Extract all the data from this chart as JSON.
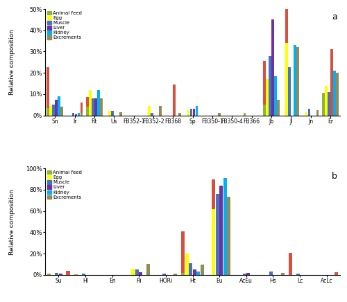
{
  "panel_a": {
    "title": "a",
    "ylim": [
      0,
      50
    ],
    "yticks": [
      0,
      10,
      20,
      30,
      40,
      50
    ],
    "ytick_labels": [
      "0%",
      "10%",
      "20%",
      "30%",
      "40%",
      "50%"
    ],
    "categories": [
      "Sn",
      "Ir",
      "Rt",
      "Us",
      "FB352-1",
      "FB352-2",
      "FB368",
      "Sp",
      "FB350-1",
      "FB350-4",
      "FB366",
      "Jb",
      "Jl",
      "Jn",
      "Er"
    ],
    "series_order": [
      "Animal feed",
      "Egg",
      "Muscle",
      "Liver",
      "Kidney",
      "Excrements"
    ],
    "series": {
      "Animal feed": {
        "base": [
          3.5,
          0,
          4.0,
          0,
          0,
          0,
          0,
          0,
          0,
          0,
          1.0,
          5.0,
          0,
          0,
          10.5
        ],
        "nox": [
          0,
          0,
          0,
          0,
          0,
          0,
          0,
          0,
          0,
          0,
          0,
          0,
          0,
          0,
          0
        ],
        "color": "#8db33a"
      },
      "Egg": {
        "base": [
          4.5,
          0,
          12.0,
          2.0,
          0,
          4.5,
          0,
          2.5,
          0,
          0,
          0,
          17.0,
          34.0,
          1.5,
          14.0
        ],
        "nox": [
          0,
          0,
          0,
          0,
          0,
          0,
          0,
          0,
          0,
          0,
          0,
          0,
          0,
          0,
          0
        ],
        "color": "#ffff00"
      },
      "Muscle": {
        "base": [
          5.0,
          1.0,
          8.0,
          2.0,
          0,
          1.0,
          0,
          3.0,
          0,
          0,
          0,
          28.0,
          22.5,
          3.0,
          11.0
        ],
        "nox": [
          0,
          0,
          0,
          0,
          0,
          0,
          0,
          0,
          0,
          0,
          0,
          0,
          0,
          0,
          0
        ],
        "color": "#4472c4"
      },
      "Liver": {
        "base": [
          7.5,
          0.5,
          8.0,
          0,
          0,
          0,
          0,
          3.0,
          0,
          0,
          0,
          45.0,
          0,
          0,
          0
        ],
        "nox": [
          0,
          0,
          0,
          0,
          0,
          0,
          0,
          0,
          0,
          0,
          0,
          0,
          0,
          0,
          0
        ],
        "color": "#7030a0"
      },
      "Kidney": {
        "base": [
          9.0,
          1.0,
          12.0,
          0,
          0,
          0,
          0,
          4.5,
          0,
          0,
          0,
          18.5,
          33.0,
          0,
          21.0
        ],
        "nox": [
          0,
          0,
          0,
          0,
          0,
          0,
          0,
          0,
          0,
          0,
          0,
          0,
          0,
          0,
          0
        ],
        "color": "#00b0f0"
      },
      "Excrements": {
        "base": [
          4.0,
          1.0,
          8.0,
          1.5,
          0,
          4.5,
          1.0,
          0,
          1.0,
          0,
          0,
          7.5,
          32.0,
          2.5,
          20.0
        ],
        "nox": [
          0,
          0,
          0,
          0,
          0,
          0,
          0,
          0,
          0,
          0,
          0,
          0,
          0,
          0,
          0
        ],
        "color": "#948a54"
      }
    },
    "red_nox": {
      "Sn": {
        "series": "Animal feed",
        "base": 0,
        "nox": 19.0
      },
      "Ir": {
        "series": "Excrements",
        "base": 0,
        "nox": 5.0
      },
      "Rt": {
        "series": "Animal feed",
        "base": 0,
        "nox": 4.5
      },
      "FB368": {
        "series": "Liver",
        "base": 0,
        "nox": 14.5
      },
      "Jb": {
        "series": "Animal feed",
        "base": 0,
        "nox": 20.5
      },
      "Jl": {
        "series": "Egg",
        "base": 0,
        "nox": 40.0
      },
      "Er": {
        "series": "Liver",
        "base": 0,
        "nox": 31.0
      }
    }
  },
  "panel_b": {
    "title": "b",
    "ylim": [
      0,
      100
    ],
    "yticks": [
      0,
      20,
      40,
      60,
      80,
      100
    ],
    "ytick_labels": [
      "0%",
      "20%",
      "40%",
      "60%",
      "80%",
      "100%"
    ],
    "categories": [
      "Su",
      "Hl",
      "En",
      "Ri",
      "HORi",
      "Ht",
      "Eu",
      "AcEu",
      "Hs",
      "Lc",
      "AcLc"
    ],
    "series_order": [
      "Animal feed",
      "Egg",
      "Muscle",
      "Liver",
      "Kidney",
      "Excrements"
    ],
    "series": {
      "Animal feed": {
        "base": [
          1.0,
          0.5,
          0,
          0,
          0,
          1.5,
          0,
          0,
          0,
          0,
          0
        ],
        "nox": [
          0,
          0,
          0,
          0,
          0,
          0,
          0,
          0,
          0,
          0,
          0
        ],
        "color": "#8db33a"
      },
      "Egg": {
        "base": [
          0,
          0,
          0,
          6.0,
          0,
          20.0,
          62.0,
          0,
          0,
          0,
          0
        ],
        "nox": [
          0,
          0,
          0,
          0,
          0,
          0,
          0,
          0,
          0,
          0,
          0
        ],
        "color": "#ffff00"
      },
      "Muscle": {
        "base": [
          1.5,
          1.0,
          0,
          5.0,
          1.0,
          11.0,
          76.0,
          1.0,
          3.0,
          1.0,
          0
        ],
        "nox": [
          0,
          0,
          0,
          0,
          0,
          0,
          0,
          0,
          0,
          0,
          0
        ],
        "color": "#4472c4"
      },
      "Liver": {
        "base": [
          1.0,
          0,
          0,
          2.5,
          0,
          5.0,
          84.0,
          2.0,
          0,
          0,
          0
        ],
        "nox": [
          0,
          0,
          0,
          0,
          0,
          0,
          0,
          0,
          0,
          0,
          0
        ],
        "color": "#7030a0"
      },
      "Kidney": {
        "base": [
          0,
          0,
          0,
          0,
          0,
          3.0,
          91.0,
          0,
          0,
          0,
          0
        ],
        "nox": [
          0,
          0,
          0,
          0,
          0,
          0,
          0,
          0,
          0,
          0,
          0
        ],
        "color": "#00b0f0"
      },
      "Excrements": {
        "base": [
          0,
          0,
          0,
          10.5,
          1.0,
          9.5,
          73.5,
          0,
          1.5,
          0,
          0
        ],
        "nox": [
          0,
          0,
          0,
          0,
          0,
          0,
          0,
          0,
          0,
          0,
          0
        ],
        "color": "#948a54"
      }
    },
    "red_nox": {
      "Su": {
        "series": "Excrements",
        "base": 0,
        "nox": 4.0
      },
      "Ht": {
        "series": "Animal feed",
        "base": 0,
        "nox": 39.5
      },
      "Eu": {
        "series": "Egg",
        "base": 0,
        "nox": 27.5
      },
      "Lc": {
        "series": "Animal feed",
        "base": 0,
        "nox": 21.0
      },
      "AcLc": {
        "series": "Excrements",
        "base": 0,
        "nox": 2.5
      }
    }
  },
  "ylabel": "Relative composition",
  "red_color": "#d94f3d"
}
